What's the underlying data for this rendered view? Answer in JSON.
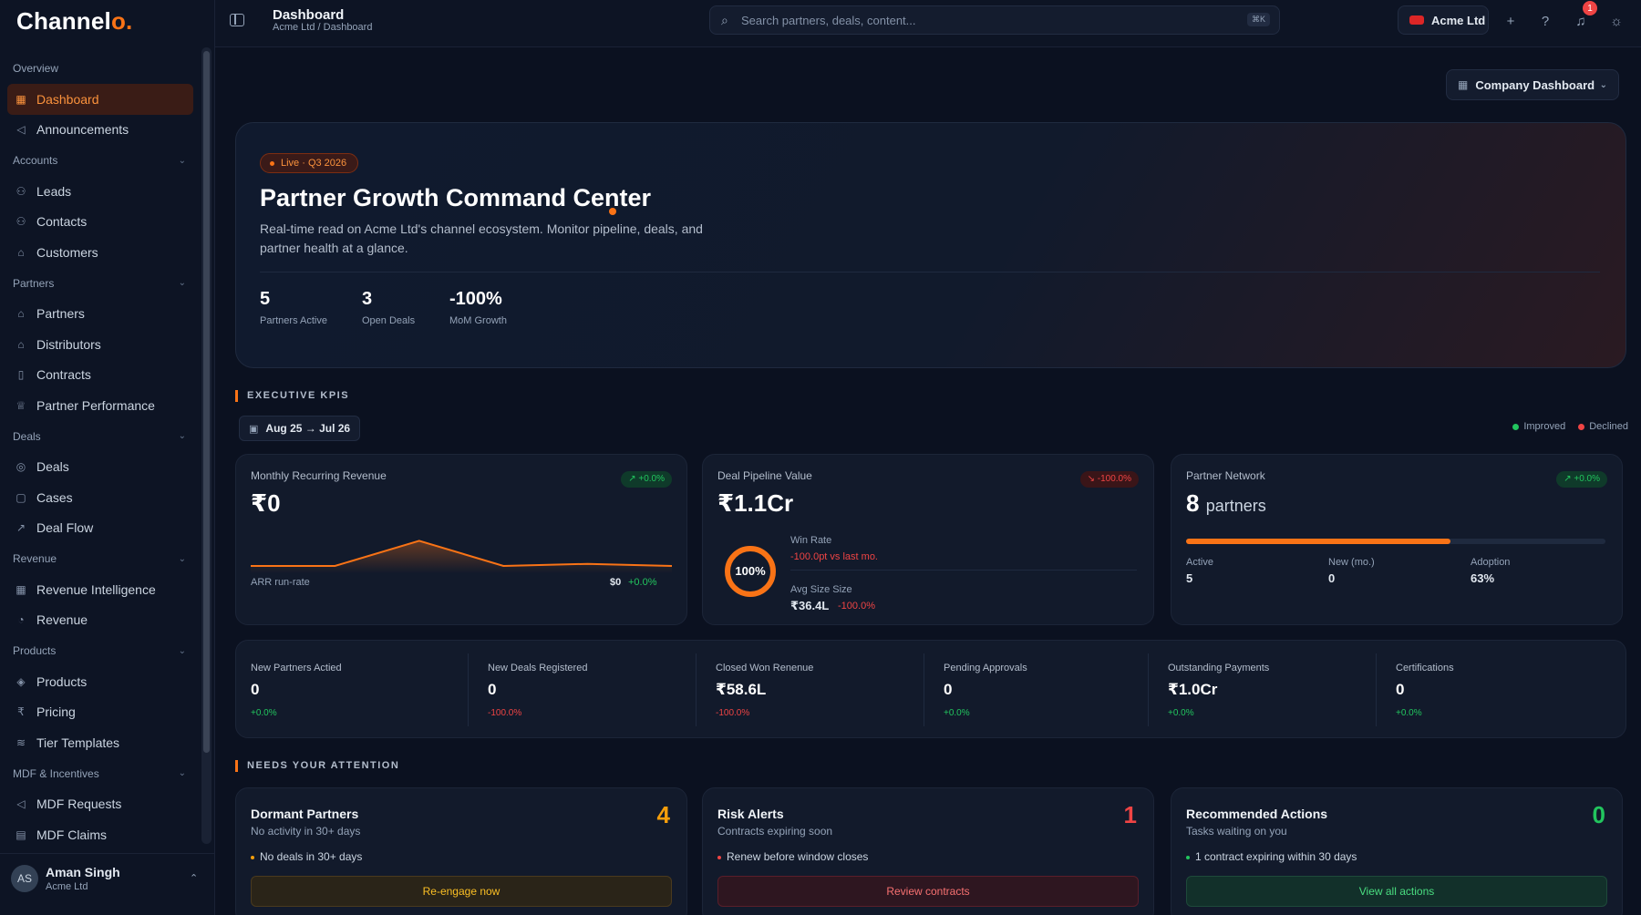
{
  "app": {
    "logo_main": "Channel",
    "logo_dot": "o."
  },
  "sidebar": {
    "overview_label": "Overview",
    "items": {
      "dashboard": "Dashboard",
      "announcements": "Announcements",
      "accounts_section": "Accounts",
      "leads": "Leads",
      "contacts": "Contacts",
      "customers": "Customers",
      "partners_section": "Partners",
      "partners": "Partners",
      "distributors": "Distributors",
      "contracts": "Contracts",
      "partner_performance": "Partner Performance",
      "deals_section": "Deals",
      "deals": "Deals",
      "cases": "Cases",
      "deal_flow": "Deal Flow",
      "revenue_section": "Revenue",
      "revenue_intelligence": "Revenue Intelligence",
      "revenue": "Revenue",
      "products_section": "Products",
      "products": "Products",
      "pricing": "Pricing",
      "tier_templates": "Tier Templates",
      "mdf_section": "MDF & Incentives",
      "mdf_requests": "MDF Requests",
      "mdf_claims": "MDF Claims"
    },
    "user": {
      "initials": "AS",
      "name": "Aman Singh",
      "org": "Acme Ltd"
    }
  },
  "topbar": {
    "title": "Dashboard",
    "breadcrumb": "Acme Ltd / Dashboard",
    "search_placeholder": "Search partners, deals, content...",
    "search_shortcut": "⌘K",
    "org_name": "Acme Ltd",
    "notification_count": "1"
  },
  "main": {
    "dashboard_select": "Company Dashboard",
    "hero": {
      "badge": "Live · Q3 2026",
      "title": "Partner Growth Command Center",
      "description": "Real-time read on Acme Ltd's channel ecosystem. Monitor pipeline, deals, and partner health at a glance.",
      "stats": [
        {
          "value": "5",
          "label": "Partners Active"
        },
        {
          "value": "3",
          "label": "Open Deals"
        },
        {
          "value": "-100%",
          "label": "MoM Growth"
        }
      ]
    },
    "kpi_section": {
      "label": "EXECUTIVE KPIS",
      "date_range": "Aug 25 → Jul 26",
      "legend_improved": "Improved",
      "legend_declined": "Declined"
    },
    "mrr_card": {
      "title": "Monthly Recurring Revenue",
      "value": "₹0",
      "delta": "+0.0%",
      "footer_label": "ARR run-rate",
      "footer_value": "$0",
      "footer_delta": "+0.0%",
      "trend_values": [
        0,
        0,
        0.6,
        0,
        0.05,
        0
      ]
    },
    "pipeline_card": {
      "title": "Deal Pipeline Value",
      "value": "₹1.1Cr",
      "delta": "-100.0%",
      "ring_label": "100%",
      "ring_value": 1.0,
      "win_rate_label": "Win Rate",
      "win_rate_delta": "-100.0pt vs last mo.",
      "avg_size_label": "Avg Size Size",
      "avg_size_value": "₹36.4L",
      "avg_size_delta": "-100.0%"
    },
    "network_card": {
      "title": "Partner Network",
      "value": "8",
      "value_suffix": "partners",
      "delta": "+0.0%",
      "adoption_fraction": 0.63,
      "active_label": "Active",
      "active_value": "5",
      "new_label": "New (mo.)",
      "new_value": "0",
      "adoption_label": "Adoption",
      "adoption_value": "63%"
    },
    "stats": [
      {
        "label": "New Partners Actied",
        "value": "0",
        "delta": "+0.0%",
        "trend": "up"
      },
      {
        "label": "New Deals Registered",
        "value": "0",
        "delta": "-100.0%",
        "trend": "down"
      },
      {
        "label": "Closed Won Renenue",
        "value": "₹58.6L",
        "delta": "-100.0%",
        "trend": "down"
      },
      {
        "label": "Pending Approvals",
        "value": "0",
        "delta": "+0.0%",
        "trend": "up"
      },
      {
        "label": "Outstanding Payments",
        "value": "₹1.0Cr",
        "delta": "+0.0%",
        "trend": "up"
      },
      {
        "label": "Certifications",
        "value": "0",
        "delta": "+0.0%",
        "trend": "up"
      }
    ],
    "attention_section": {
      "label": "NEEDS YOUR ATTENTION"
    },
    "attention": [
      {
        "title": "Dormant Partners",
        "subtitle": "No activity in 30+ days",
        "count": "4",
        "bullet": "No deals in 30+ days",
        "button": "Re-engage now",
        "color": "#f59e0b"
      },
      {
        "title": "Risk Alerts",
        "subtitle": "Contracts expiring soon",
        "count": "1",
        "bullet": "Renew before window closes",
        "button": "Review contracts",
        "color": "#ef4444"
      },
      {
        "title": "Recommended Actions",
        "subtitle": "Tasks waiting on you",
        "count": "0",
        "bullet": "1 contract expiring within 30 days",
        "button": "View all actions",
        "color": "#22c55e"
      }
    ]
  },
  "colors": {
    "accent": "#f97316",
    "background": "#0b1120",
    "card": "#121a2b",
    "improved": "#22c55e",
    "declined": "#ef4444"
  }
}
